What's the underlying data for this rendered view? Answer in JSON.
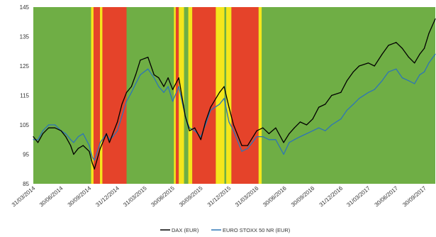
{
  "chart_data": {
    "type": "line",
    "title": "",
    "xlabel": "",
    "ylabel": "",
    "ylim": [
      85,
      145
    ],
    "xlim": [
      "2014-03-31",
      "2017-11-05"
    ],
    "yticks": [
      85,
      95,
      105,
      115,
      125,
      135,
      145
    ],
    "xticks": [
      "31/03/2014",
      "30/06/2014",
      "30/09/2014",
      "31/12/2014",
      "31/03/2015",
      "30/06/2015",
      "30/09/2015",
      "31/12/2015",
      "31/03/2016",
      "30/06/2016",
      "30/09/2016",
      "31/12/2016",
      "31/03/2017",
      "30/06/2017",
      "30/09/2017"
    ],
    "grid": false,
    "legend_position": "bottom",
    "background_color": "#6fae45",
    "regimes": [
      {
        "start": "2014-10-06",
        "end": "2014-10-14",
        "color": "#f5e61c"
      },
      {
        "start": "2014-10-14",
        "end": "2014-11-04",
        "color": "#e5432a"
      },
      {
        "start": "2014-11-04",
        "end": "2014-11-12",
        "color": "#f5e61c"
      },
      {
        "start": "2014-11-12",
        "end": "2015-01-30",
        "color": "#e5432a"
      },
      {
        "start": "2015-07-04",
        "end": "2015-07-10",
        "color": "#f5e61c"
      },
      {
        "start": "2015-07-10",
        "end": "2015-07-20",
        "color": "#e5432a"
      },
      {
        "start": "2015-07-20",
        "end": "2015-08-06",
        "color": "#f5e61c"
      },
      {
        "start": "2015-08-20",
        "end": "2015-09-02",
        "color": "#f5e61c"
      },
      {
        "start": "2015-09-02",
        "end": "2015-11-18",
        "color": "#e5432a"
      },
      {
        "start": "2015-11-18",
        "end": "2015-12-16",
        "color": "#f5e61c"
      },
      {
        "start": "2015-12-22",
        "end": "2016-01-08",
        "color": "#f5e61c"
      },
      {
        "start": "2016-01-08",
        "end": "2016-04-06",
        "color": "#e5432a"
      },
      {
        "start": "2016-04-06",
        "end": "2016-04-16",
        "color": "#f5e61c"
      }
    ],
    "series": [
      {
        "name": "DAX (EUR)",
        "color": "#000000",
        "x": [
          "2014-03-31",
          "2014-04-15",
          "2014-05-01",
          "2014-05-20",
          "2014-06-10",
          "2014-06-30",
          "2014-07-15",
          "2014-07-31",
          "2014-08-10",
          "2014-08-25",
          "2014-09-10",
          "2014-09-30",
          "2014-10-10",
          "2014-10-17",
          "2014-11-05",
          "2014-11-25",
          "2014-12-05",
          "2014-12-16",
          "2014-12-31",
          "2015-01-15",
          "2015-01-30",
          "2015-02-15",
          "2015-03-01",
          "2015-03-16",
          "2015-04-10",
          "2015-04-30",
          "2015-05-15",
          "2015-06-01",
          "2015-06-15",
          "2015-06-30",
          "2015-07-20",
          "2015-08-10",
          "2015-08-24",
          "2015-09-10",
          "2015-09-30",
          "2015-10-15",
          "2015-11-01",
          "2015-11-30",
          "2015-12-15",
          "2015-12-31",
          "2016-01-15",
          "2016-02-11",
          "2016-03-01",
          "2016-03-31",
          "2016-04-20",
          "2016-05-10",
          "2016-06-01",
          "2016-06-27",
          "2016-07-15",
          "2016-08-01",
          "2016-08-20",
          "2016-09-10",
          "2016-09-30",
          "2016-10-20",
          "2016-11-10",
          "2016-12-01",
          "2016-12-31",
          "2017-01-20",
          "2017-02-10",
          "2017-03-01",
          "2017-03-31",
          "2017-04-20",
          "2017-05-15",
          "2017-06-05",
          "2017-06-30",
          "2017-07-20",
          "2017-08-10",
          "2017-08-29",
          "2017-09-15",
          "2017-09-30",
          "2017-10-15",
          "2017-11-05"
        ],
        "values": [
          101,
          99,
          102,
          104,
          104,
          103,
          101,
          98,
          95,
          97,
          98,
          96,
          92,
          90,
          97,
          102,
          99,
          102,
          106,
          112,
          116,
          118,
          122,
          127,
          128,
          122,
          121,
          118,
          121,
          117,
          121,
          108,
          103,
          104,
          100,
          106,
          111,
          116,
          118,
          111,
          105,
          98,
          98,
          103,
          104,
          102,
          104,
          99,
          102,
          104,
          106,
          105,
          107,
          111,
          112,
          115,
          116,
          120,
          123,
          125,
          126,
          125,
          129,
          132,
          133,
          131,
          128,
          126,
          129,
          131,
          136,
          141
        ]
      },
      {
        "name": "EURO STOXX 50 NR (EUR)",
        "color": "#2e75b6",
        "x": [
          "2014-03-31",
          "2014-04-15",
          "2014-05-01",
          "2014-05-20",
          "2014-06-10",
          "2014-06-30",
          "2014-07-15",
          "2014-07-31",
          "2014-08-10",
          "2014-08-25",
          "2014-09-10",
          "2014-09-30",
          "2014-10-10",
          "2014-10-17",
          "2014-11-05",
          "2014-11-25",
          "2014-12-05",
          "2014-12-16",
          "2014-12-31",
          "2015-01-15",
          "2015-01-30",
          "2015-02-15",
          "2015-03-01",
          "2015-03-16",
          "2015-04-10",
          "2015-04-30",
          "2015-05-15",
          "2015-06-01",
          "2015-06-15",
          "2015-06-30",
          "2015-07-20",
          "2015-08-10",
          "2015-08-24",
          "2015-09-10",
          "2015-09-30",
          "2015-10-15",
          "2015-11-01",
          "2015-11-30",
          "2015-12-15",
          "2015-12-31",
          "2016-01-15",
          "2016-02-11",
          "2016-03-01",
          "2016-03-31",
          "2016-04-20",
          "2016-05-10",
          "2016-06-01",
          "2016-06-27",
          "2016-07-15",
          "2016-08-01",
          "2016-08-20",
          "2016-09-10",
          "2016-09-30",
          "2016-10-20",
          "2016-11-10",
          "2016-12-01",
          "2016-12-31",
          "2017-01-20",
          "2017-02-10",
          "2017-03-01",
          "2017-03-31",
          "2017-04-20",
          "2017-05-15",
          "2017-06-05",
          "2017-06-30",
          "2017-07-20",
          "2017-08-10",
          "2017-08-29",
          "2017-09-15",
          "2017-09-30",
          "2017-10-15",
          "2017-11-05"
        ],
        "values": [
          100,
          100,
          103,
          105,
          105,
          103,
          102,
          100,
          99,
          101,
          102,
          98,
          94,
          93,
          99,
          102,
          100,
          101,
          103,
          108,
          113,
          116,
          119,
          122,
          124,
          121,
          118,
          116,
          118,
          113,
          118,
          108,
          104,
          103,
          101,
          105,
          110,
          112,
          114,
          106,
          103,
          96,
          97,
          101,
          101,
          100,
          100,
          95,
          99,
          100,
          101,
          102,
          103,
          104,
          103,
          105,
          107,
          110,
          112,
          114,
          116,
          117,
          120,
          123,
          124,
          121,
          120,
          119,
          122,
          123,
          126,
          129
        ]
      }
    ]
  },
  "legend": {
    "items": [
      {
        "label": "DAX (EUR)",
        "color": "#000000"
      },
      {
        "label": "EURO STOXX 50 NR (EUR)",
        "color": "#2e75b6"
      }
    ]
  }
}
